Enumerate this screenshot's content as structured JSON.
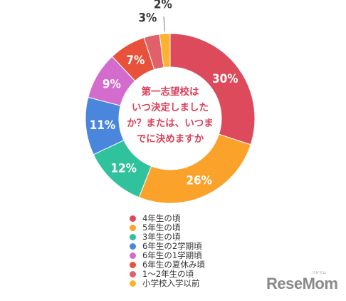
{
  "chart_data": {
    "type": "pie",
    "style": "donut",
    "title": "第一志望校はいつ決定しましたか？または、いつまでに決めますか",
    "title_lines": [
      "第一志望校は",
      "いつ決定しました",
      "か？または、いつま",
      "でに決めますか"
    ],
    "categories": [
      "4年生の頃",
      "5年生の頃",
      "3年生の頃",
      "6年生の2学期頃",
      "6年生の1学期頃",
      "6年生の夏休み頃",
      "1〜2年生の頃",
      "小学校入学以前"
    ],
    "values": [
      30,
      26,
      12,
      11,
      9,
      7,
      3,
      2
    ],
    "value_labels": [
      "30%",
      "26%",
      "12%",
      "11%",
      "9%",
      "7%",
      "3%",
      "2%"
    ],
    "colors": [
      "#dd4a5b",
      "#fba22a",
      "#2fc29c",
      "#4a86dc",
      "#d36ccd",
      "#e8523b",
      "#e0606b",
      "#fbb22e"
    ],
    "legend_position": "bottom"
  },
  "logo": {
    "text": "ReseMom",
    "kana": "リセマム"
  }
}
